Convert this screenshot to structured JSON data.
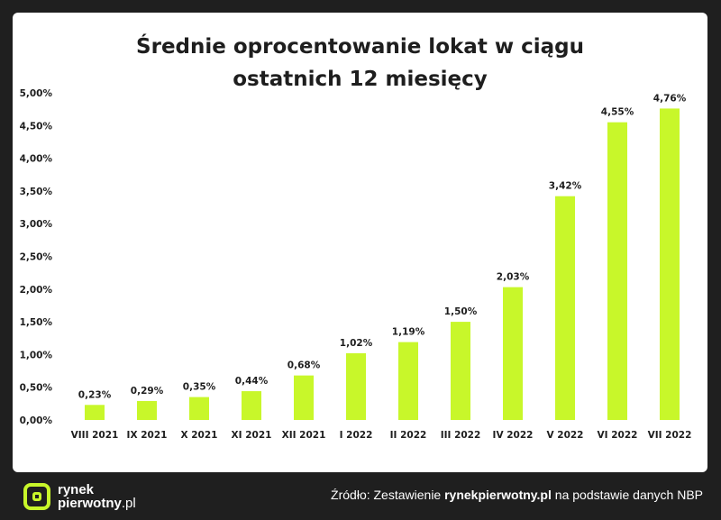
{
  "chart_data": {
    "type": "bar",
    "title_lines": [
      "Średnie oprocentowanie lokat w ciągu",
      "ostatnich 12 miesięcy"
    ],
    "categories": [
      "VIII 2021",
      "IX 2021",
      "X 2021",
      "XI 2021",
      "XII 2021",
      "I 2022",
      "II 2022",
      "III 2022",
      "IV 2022",
      "V 2022",
      "VI 2022",
      "VII 2022"
    ],
    "values": [
      0.23,
      0.29,
      0.35,
      0.44,
      0.68,
      1.02,
      1.19,
      1.5,
      2.03,
      3.42,
      4.55,
      4.76
    ],
    "data_labels": [
      "0,23%",
      "0,29%",
      "0,35%",
      "0,44%",
      "0,68%",
      "1,02%",
      "1,19%",
      "1,50%",
      "2,03%",
      "3,42%",
      "4,55%",
      "4,76%"
    ],
    "yticks": [
      0,
      0.5,
      1,
      1.5,
      2,
      2.5,
      3,
      3.5,
      4,
      4.5,
      5
    ],
    "ytick_labels": [
      "0,00%",
      "0,50%",
      "1,00%",
      "1,50%",
      "2,00%",
      "2,50%",
      "3,00%",
      "3,50%",
      "4,00%",
      "4,50%",
      "5,00%"
    ],
    "ylim": [
      0,
      5
    ],
    "grid": false,
    "xlabel": "",
    "ylabel": ""
  },
  "colors": {
    "bar": "#c8f72a",
    "background": "#1f1f1f",
    "card": "#ffffff",
    "text": "#1e1e1e",
    "accent": "#c8f72a"
  },
  "footer": {
    "logo_line1": "rynek",
    "logo_line2": "pierwotny",
    "logo_tld": ".pl",
    "source_prefix": "Źródło: Zestawienie ",
    "source_site": "rynekpierwotny.pl",
    "source_suffix": " na podstawie danych NBP"
  }
}
